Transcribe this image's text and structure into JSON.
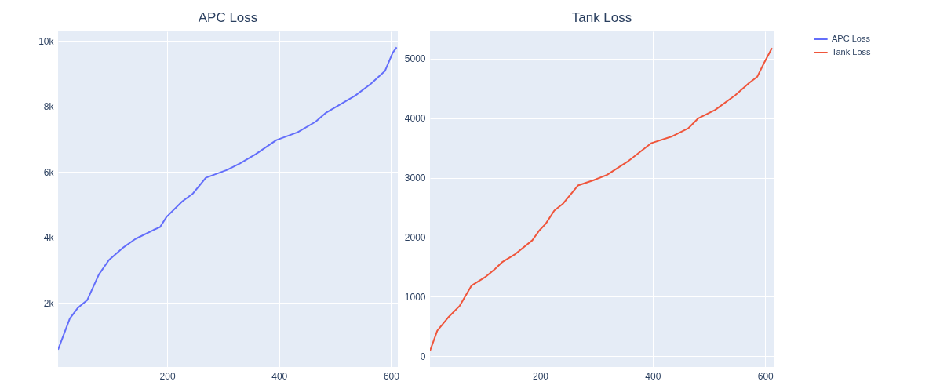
{
  "chart_data": [
    {
      "type": "line",
      "title": "APC Loss",
      "xlim": [
        5,
        612
      ],
      "ylim": [
        40,
        10290
      ],
      "xticks": [
        200,
        400,
        600
      ],
      "yticks": [
        {
          "value": 2000,
          "label": "2k"
        },
        {
          "value": 4000,
          "label": "4k"
        },
        {
          "value": 6000,
          "label": "6k"
        },
        {
          "value": 8000,
          "label": "8k"
        },
        {
          "value": 10000,
          "label": "10k"
        }
      ],
      "grid": true,
      "series": [
        {
          "name": "APC Loss",
          "color": "#636efa",
          "x": [
            5,
            26,
            40,
            57,
            78,
            96,
            120,
            143,
            176,
            187,
            199,
            227,
            246,
            269,
            307,
            330,
            358,
            395,
            433,
            465,
            484,
            536,
            564,
            589,
            603,
            610
          ],
          "values": [
            570,
            1520,
            1840,
            2080,
            2870,
            3310,
            3670,
            3950,
            4230,
            4310,
            4630,
            5100,
            5340,
            5820,
            6060,
            6260,
            6540,
            6970,
            7210,
            7530,
            7810,
            8330,
            8690,
            9080,
            9640,
            9800
          ]
        }
      ]
    },
    {
      "type": "line",
      "title": "Tank Loss",
      "xlim": [
        4,
        615
      ],
      "ylim": [
        -180,
        5460
      ],
      "xticks": [
        200,
        400,
        600
      ],
      "yticks": [
        0,
        1000,
        2000,
        3000,
        4000,
        5000
      ],
      "grid": true,
      "legend": "top right",
      "series": [
        {
          "name": "Tank Loss",
          "color": "#ef553b",
          "x": [
            4,
            17,
            36,
            57,
            78,
            102,
            120,
            132,
            156,
            186,
            198,
            210,
            225,
            240,
            267,
            295,
            319,
            355,
            397,
            433,
            463,
            481,
            511,
            547,
            571,
            586,
            598,
            612
          ],
          "values": [
            90,
            430,
            650,
            850,
            1190,
            1330,
            1470,
            1580,
            1720,
            1950,
            2110,
            2230,
            2450,
            2560,
            2870,
            2960,
            3050,
            3270,
            3580,
            3690,
            3830,
            4000,
            4140,
            4390,
            4590,
            4700,
            4930,
            5180
          ]
        }
      ]
    }
  ]
}
